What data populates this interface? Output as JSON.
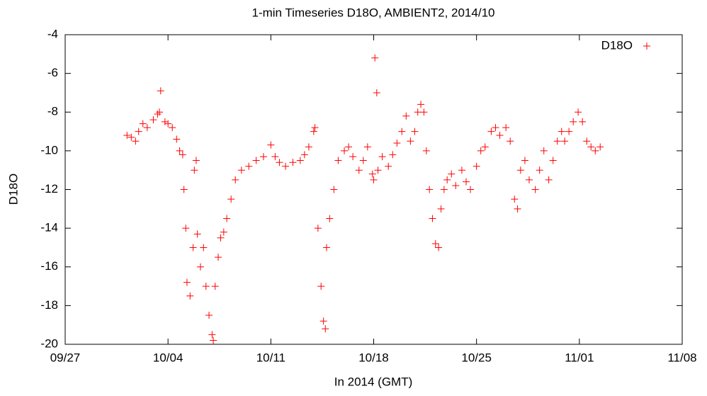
{
  "chart_data": {
    "type": "scatter",
    "title": "1-min Timeseries D18O, AMBIENT2, 2014/10",
    "x_label": "In 2014 (GMT)",
    "y_label": "D18O",
    "legend": "upper right",
    "grid": false,
    "xlim": [
      "2014-09-27T00:00",
      "2014-11-08T00:00"
    ],
    "xticks": [
      {
        "value": "2014-09-27T00:00",
        "label": "09/27"
      },
      {
        "value": "2014-10-04T00:00",
        "label": "10/04"
      },
      {
        "value": "2014-10-11T00:00",
        "label": "10/11"
      },
      {
        "value": "2014-10-18T00:00",
        "label": "10/18"
      },
      {
        "value": "2014-10-25T00:00",
        "label": "10/25"
      },
      {
        "value": "2014-11-01T00:00",
        "label": "11/01"
      },
      {
        "value": "2014-11-08T00:00",
        "label": "11/08"
      }
    ],
    "ylim": [
      -20,
      -4
    ],
    "yticks": [
      -20,
      -18,
      -16,
      -14,
      -12,
      -10,
      -8,
      -6,
      -4
    ],
    "series": [
      {
        "name": "D18O",
        "color": "#ff0000",
        "x": [
          "2014-10-01T05:00",
          "2014-10-01T12:00",
          "2014-10-01T19:00",
          "2014-10-02T00:00",
          "2014-10-02T07:00",
          "2014-10-02T14:00",
          "2014-10-03T00:00",
          "2014-10-03T07:00",
          "2014-10-03T10:00",
          "2014-10-03T12:00",
          "2014-10-03T19:00",
          "2014-10-04T00:00",
          "2014-10-04T07:00",
          "2014-10-04T14:00",
          "2014-10-04T19:00",
          "2014-10-05T00:00",
          "2014-10-05T02:00",
          "2014-10-05T05:00",
          "2014-10-05T07:00",
          "2014-10-05T12:00",
          "2014-10-05T17:00",
          "2014-10-05T19:00",
          "2014-10-05T22:00",
          "2014-10-06T00:00",
          "2014-10-06T05:00",
          "2014-10-06T10:00",
          "2014-10-06T14:00",
          "2014-10-06T19:00",
          "2014-10-07T00:00",
          "2014-10-07T02:00",
          "2014-10-07T05:00",
          "2014-10-07T10:00",
          "2014-10-07T14:00",
          "2014-10-07T19:00",
          "2014-10-08T00:00",
          "2014-10-08T07:00",
          "2014-10-08T14:00",
          "2014-10-09T00:00",
          "2014-10-09T12:00",
          "2014-10-10T00:00",
          "2014-10-10T12:00",
          "2014-10-11T00:00",
          "2014-10-11T07:00",
          "2014-10-11T14:00",
          "2014-10-12T00:00",
          "2014-10-12T12:00",
          "2014-10-13T00:00",
          "2014-10-13T07:00",
          "2014-10-13T14:00",
          "2014-10-13T22:00",
          "2014-10-14T00:00",
          "2014-10-14T05:00",
          "2014-10-14T10:00",
          "2014-10-14T14:00",
          "2014-10-14T17:00",
          "2014-10-14T19:00",
          "2014-10-15T00:00",
          "2014-10-15T07:00",
          "2014-10-15T14:00",
          "2014-10-16T00:00",
          "2014-10-16T07:00",
          "2014-10-16T14:00",
          "2014-10-17T00:00",
          "2014-10-17T07:00",
          "2014-10-17T14:00",
          "2014-10-17T22:00",
          "2014-10-18T00:00",
          "2014-10-18T02:00",
          "2014-10-18T05:00",
          "2014-10-18T07:00",
          "2014-10-18T14:00",
          "2014-10-19T00:00",
          "2014-10-19T07:00",
          "2014-10-19T14:00",
          "2014-10-19T22:00",
          "2014-10-20T05:00",
          "2014-10-20T12:00",
          "2014-10-20T19:00",
          "2014-10-21T00:00",
          "2014-10-21T05:00",
          "2014-10-21T10:00",
          "2014-10-21T14:00",
          "2014-10-21T19:00",
          "2014-10-22T00:00",
          "2014-10-22T05:00",
          "2014-10-22T10:00",
          "2014-10-22T14:00",
          "2014-10-22T19:00",
          "2014-10-23T00:00",
          "2014-10-23T07:00",
          "2014-10-23T14:00",
          "2014-10-24T00:00",
          "2014-10-24T07:00",
          "2014-10-24T14:00",
          "2014-10-25T00:00",
          "2014-10-25T07:00",
          "2014-10-25T14:00",
          "2014-10-26T00:00",
          "2014-10-26T07:00",
          "2014-10-26T14:00",
          "2014-10-27T00:00",
          "2014-10-27T07:00",
          "2014-10-27T14:00",
          "2014-10-27T19:00",
          "2014-10-28T00:00",
          "2014-10-28T07:00",
          "2014-10-28T14:00",
          "2014-10-29T00:00",
          "2014-10-29T07:00",
          "2014-10-29T14:00",
          "2014-10-29T22:00",
          "2014-10-30T05:00",
          "2014-10-30T12:00",
          "2014-10-30T19:00",
          "2014-10-31T00:00",
          "2014-10-31T07:00",
          "2014-10-31T14:00",
          "2014-10-31T22:00",
          "2014-11-01T05:00",
          "2014-11-01T12:00",
          "2014-11-01T19:00",
          "2014-11-02T02:00",
          "2014-11-02T10:00"
        ],
        "values": [
          -9.2,
          -9.3,
          -9.5,
          -9.0,
          -8.6,
          -8.8,
          -8.4,
          -8.1,
          -8.0,
          -6.9,
          -8.5,
          -8.6,
          -8.8,
          -9.4,
          -10.0,
          -10.2,
          -12.0,
          -14.0,
          -16.8,
          -17.5,
          -15.0,
          -11.0,
          -10.5,
          -14.3,
          -16.0,
          -15.0,
          -17.0,
          -18.5,
          -19.5,
          -19.8,
          -17.0,
          -15.5,
          -14.5,
          -14.2,
          -13.5,
          -12.5,
          -11.5,
          -11.0,
          -10.8,
          -10.5,
          -10.3,
          -9.7,
          -10.3,
          -10.6,
          -10.8,
          -10.6,
          -10.5,
          -10.2,
          -9.8,
          -9.0,
          -8.8,
          -14.0,
          -17.0,
          -18.8,
          -19.2,
          -15.0,
          -13.5,
          -12.0,
          -10.5,
          -10.0,
          -9.8,
          -10.3,
          -11.0,
          -10.5,
          -9.8,
          -11.2,
          -11.5,
          -5.2,
          -7.0,
          -11.0,
          -10.3,
          -10.8,
          -10.2,
          -9.6,
          -9.0,
          -8.2,
          -9.5,
          -9.0,
          -8.0,
          -7.6,
          -8.0,
          -10.0,
          -12.0,
          -13.5,
          -14.8,
          -15.0,
          -13.0,
          -12.0,
          -11.5,
          -11.2,
          -11.8,
          -11.0,
          -11.6,
          -12.0,
          -10.8,
          -10.0,
          -9.8,
          -9.0,
          -8.8,
          -9.2,
          -8.8,
          -9.5,
          -12.5,
          -13.0,
          -11.0,
          -10.5,
          -11.5,
          -12.0,
          -11.0,
          -10.0,
          -11.5,
          -10.5,
          -9.5,
          -9.0,
          -9.5,
          -9.0,
          -8.5,
          -8.0,
          -8.5,
          -9.5,
          -9.8,
          -10.0,
          -9.8
        ]
      }
    ]
  }
}
